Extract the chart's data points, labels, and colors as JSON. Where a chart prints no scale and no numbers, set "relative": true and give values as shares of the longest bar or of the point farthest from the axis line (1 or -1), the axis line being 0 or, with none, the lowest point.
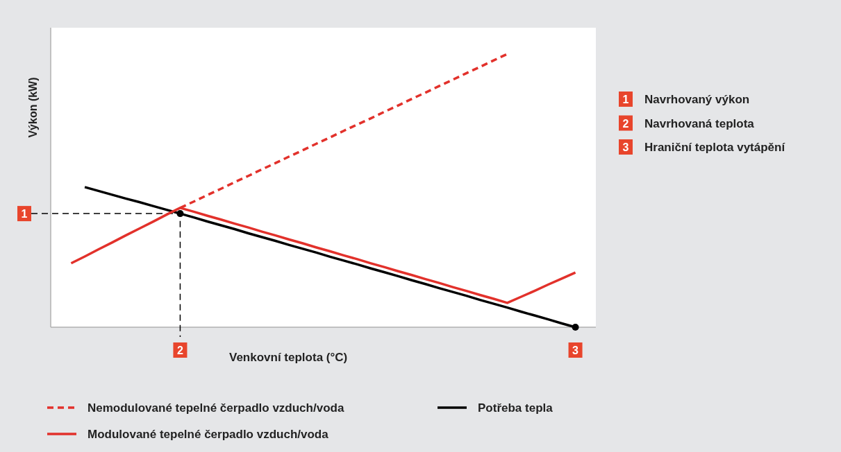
{
  "chart_data": {
    "type": "line",
    "relative": true,
    "xlabel": "Venkovní teplota (°C)",
    "ylabel": "Výkon (kW)",
    "legend": "bottom",
    "categories": [
      null,
      null,
      null,
      null,
      null,
      null,
      null,
      null,
      null,
      null,
      null,
      null,
      null,
      null,
      null,
      null,
      null,
      null,
      null,
      null,
      null,
      null,
      null,
      null,
      null,
      null,
      null,
      null,
      null,
      null,
      null,
      null,
      null,
      null,
      null,
      null,
      null,
      null,
      null,
      null
    ],
    "series": [
      {
        "name": "Nemodulované tepelné čerpadlo vzduch/voda",
        "color": "#e2312b",
        "line_style": "dashed",
        "values": [
          null,
          null,
          null,
          null,
          null,
          null,
          null,
          null,
          null,
          0.437,
          0.46,
          0.484,
          0.507,
          0.531,
          0.554,
          0.578,
          0.601,
          0.625,
          0.648,
          0.672,
          0.695,
          0.719,
          0.742,
          0.765,
          0.789,
          0.812,
          0.836,
          0.859,
          0.883,
          0.906,
          0.93,
          0.953,
          0.977,
          1.0,
          null,
          null,
          null,
          null,
          null,
          null
        ]
      },
      {
        "name": "Potřeba tepla",
        "color": "#000000",
        "line_style": "solid",
        "values": [
          null,
          null,
          0.513,
          0.499,
          0.485,
          0.471,
          0.458,
          0.444,
          0.43,
          0.416,
          0.402,
          0.387,
          0.373,
          0.359,
          0.344,
          0.33,
          0.316,
          0.301,
          0.287,
          0.273,
          0.258,
          0.244,
          0.23,
          0.215,
          0.201,
          0.187,
          0.172,
          0.158,
          0.143,
          0.129,
          0.115,
          0.1,
          0.086,
          0.072,
          0.057,
          0.043,
          0.029,
          0.014,
          0,
          null
        ]
      },
      {
        "name": "Modulované tepelné čerpadlo vzduch/voda",
        "color": "#e2312b",
        "line_style": "solid",
        "values": [
          null,
          0.234,
          0.259,
          0.285,
          0.31,
          0.336,
          0.361,
          0.386,
          0.412,
          0.437,
          0.423,
          0.408,
          0.394,
          0.379,
          0.365,
          0.35,
          0.336,
          0.321,
          0.307,
          0.292,
          0.278,
          0.263,
          0.249,
          0.234,
          0.22,
          0.205,
          0.191,
          0.176,
          0.162,
          0.147,
          0.133,
          0.118,
          0.104,
          0.089,
          0.111,
          0.133,
          0.156,
          0.178,
          0.2,
          null
        ]
      }
    ],
    "ref_lines": [
      {
        "axis": "y",
        "value": 0.416,
        "color": "#000000",
        "line_style": "dashed"
      }
    ],
    "annotations": [
      "1",
      "2",
      "3",
      "1",
      "Navrhovaný výkon",
      "2",
      "Navrhovaná teplota",
      "3",
      "Hraniční teplota vytápění"
    ]
  }
}
